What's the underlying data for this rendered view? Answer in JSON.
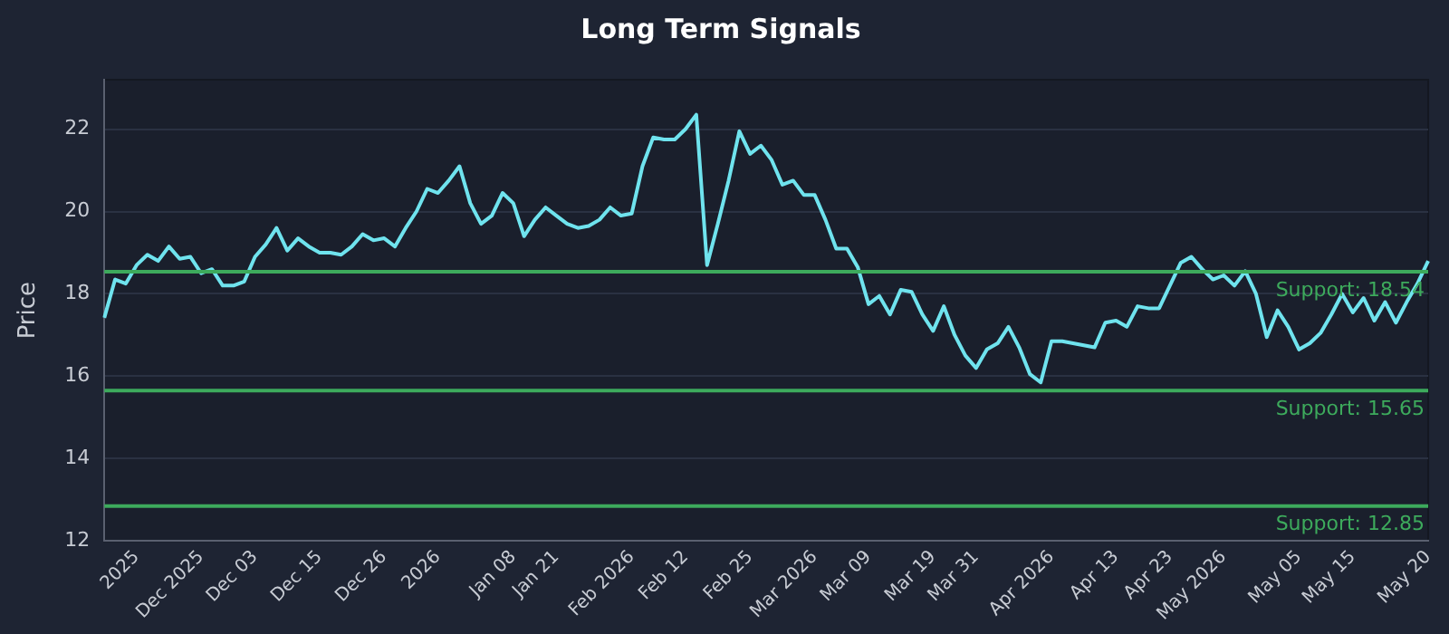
{
  "chart_data": {
    "type": "line",
    "title": "Long Term Signals",
    "ylabel": "Price",
    "categories": [
      null,
      null,
      null,
      "2025",
      null,
      null,
      null,
      null,
      null,
      "Dec 2025",
      null,
      null,
      null,
      null,
      "Dec 03",
      null,
      null,
      null,
      null,
      null,
      "Dec 15",
      null,
      null,
      null,
      null,
      null,
      "Dec 26",
      null,
      null,
      null,
      null,
      "2026",
      null,
      null,
      null,
      null,
      null,
      null,
      "Jan 08",
      null,
      null,
      null,
      "Jan 21",
      null,
      null,
      null,
      null,
      null,
      null,
      "Feb 2026",
      null,
      null,
      null,
      null,
      "Feb 12",
      null,
      null,
      null,
      null,
      null,
      "Feb 25",
      null,
      null,
      null,
      null,
      null,
      "Mar 2026",
      null,
      null,
      null,
      null,
      "Mar 09",
      null,
      null,
      null,
      null,
      null,
      "Mar 19",
      null,
      null,
      null,
      "Mar 31",
      null,
      null,
      null,
      null,
      null,
      null,
      "Apr 2026",
      null,
      null,
      null,
      null,
      null,
      "Apr 13",
      null,
      null,
      null,
      null,
      "Apr 23",
      null,
      null,
      null,
      null,
      "May 2026",
      null,
      null,
      null,
      null,
      null,
      null,
      "May 05",
      null,
      null,
      null,
      null,
      "May 15",
      null,
      null,
      null,
      null,
      null,
      null,
      "May 20"
    ],
    "series": [
      {
        "color": "#6fe3ee",
        "values": [
          17.42,
          18.35,
          18.25,
          18.7,
          18.95,
          18.8,
          19.15,
          18.85,
          18.9,
          18.5,
          18.6,
          18.2,
          18.2,
          18.3,
          18.9,
          19.2,
          19.6,
          19.05,
          19.35,
          19.15,
          19.0,
          19.0,
          18.95,
          19.15,
          19.45,
          19.3,
          19.35,
          19.15,
          19.6,
          20.0,
          20.55,
          20.45,
          20.75,
          21.1,
          20.2,
          19.7,
          19.9,
          20.45,
          20.2,
          19.4,
          19.8,
          20.1,
          19.9,
          19.7,
          19.6,
          19.65,
          19.8,
          20.1,
          19.9,
          19.95,
          21.1,
          21.8,
          21.75,
          21.75,
          22.0,
          22.35,
          18.7,
          19.7,
          20.75,
          21.95,
          21.4,
          21.6,
          21.25,
          20.65,
          20.75,
          20.4,
          20.4,
          19.8,
          19.1,
          19.1,
          18.65,
          17.75,
          17.95,
          17.5,
          18.1,
          18.05,
          17.5,
          17.1,
          17.7,
          17.0,
          16.5,
          16.2,
          16.65,
          16.8,
          17.2,
          16.7,
          16.05,
          15.85,
          16.85,
          16.85,
          16.8,
          16.75,
          16.7,
          17.3,
          17.35,
          17.2,
          17.7,
          17.65,
          17.65,
          18.2,
          18.75,
          18.9,
          18.6,
          18.35,
          18.45,
          18.2,
          18.55,
          18.0,
          16.95,
          17.6,
          17.2,
          16.65,
          16.8,
          17.05,
          17.5,
          18.0,
          17.55,
          17.9,
          17.35,
          17.8,
          17.3,
          17.8,
          18.25,
          18.8
        ]
      }
    ],
    "ylim": [
      12,
      23.2
    ],
    "yticks": [
      12,
      14,
      16,
      18,
      20,
      22
    ],
    "grid": "y",
    "legend": false,
    "marker": "none",
    "line_style": "solid",
    "ref_lines": [
      {
        "axis": "y",
        "value": 18.54,
        "label": "Support: 18.54",
        "color": "#3daa5c"
      },
      {
        "axis": "y",
        "value": 15.65,
        "label": "Support: 15.65",
        "color": "#3daa5c"
      },
      {
        "axis": "y",
        "value": 12.85,
        "label": "Support: 12.85",
        "color": "#3daa5c"
      }
    ]
  }
}
